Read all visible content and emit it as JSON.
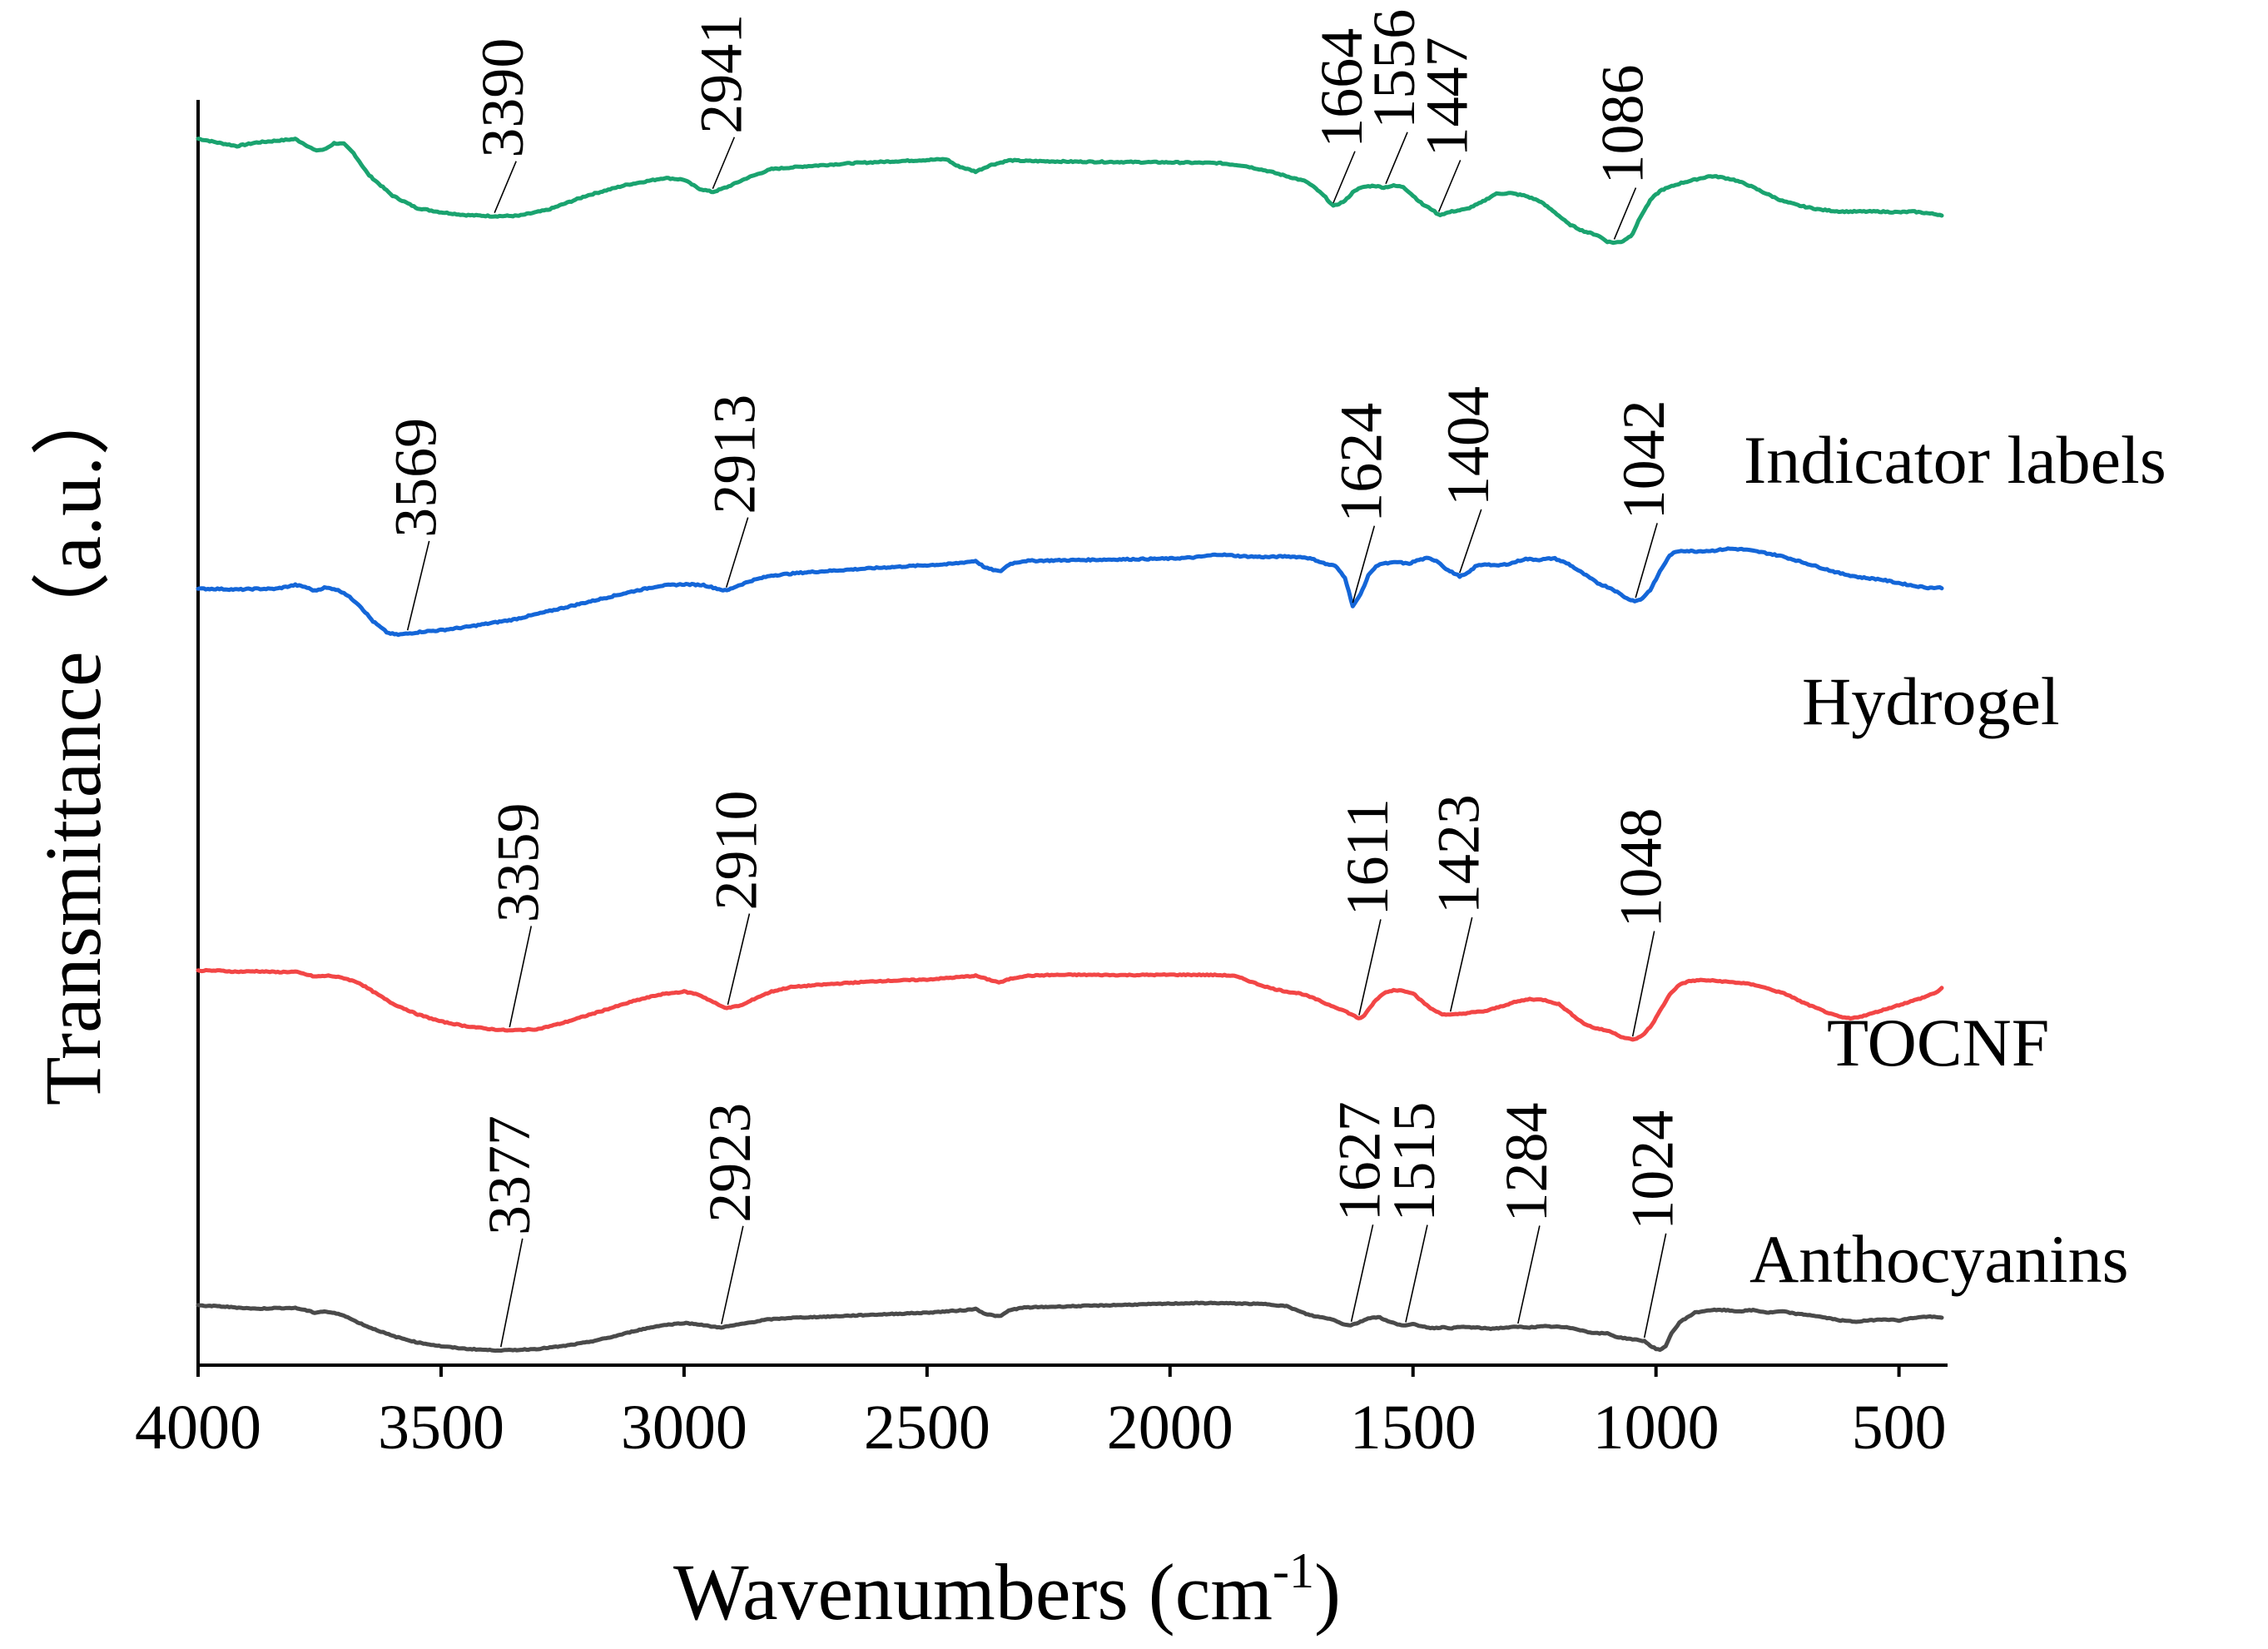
{
  "chart_data": {
    "type": "line",
    "title": "",
    "xlabel": "Wavenumbers (cm",
    "xlabel_sup": "-1",
    "xlabel_end": ")",
    "ylabel": "Transmittance（a.u.）",
    "xlim": [
      4000,
      400
    ],
    "x_reversed": true,
    "xticks": [
      4000,
      3500,
      3000,
      2500,
      2000,
      1500,
      1000,
      500
    ],
    "xtick_labels": [
      "4000",
      "3500",
      "3000",
      "2500",
      "2000",
      "1500",
      "1000",
      "500"
    ],
    "ylim": [
      0,
      100
    ],
    "yticks_shown": false,
    "grid": false,
    "legend": "inline labels at right of each curve",
    "series": [
      {
        "name": "Indicator labels",
        "color": "#1aa36f",
        "x": [
          4000,
          3960,
          3920,
          3880,
          3840,
          3800,
          3780,
          3760,
          3740,
          3720,
          3700,
          3680,
          3650,
          3600,
          3550,
          3500,
          3450,
          3390,
          3340,
          3280,
          3200,
          3120,
          3040,
          3000,
          2970,
          2941,
          2910,
          2870,
          2820,
          2750,
          2650,
          2550,
          2460,
          2440,
          2400,
          2370,
          2330,
          2300,
          2200,
          2100,
          2000,
          1900,
          1850,
          1800,
          1760,
          1720,
          1700,
          1680,
          1664,
          1640,
          1620,
          1600,
          1580,
          1560,
          1540,
          1520,
          1500,
          1480,
          1460,
          1447,
          1420,
          1390,
          1360,
          1330,
          1300,
          1270,
          1240,
          1210,
          1180,
          1150,
          1120,
          1100,
          1086,
          1070,
          1050,
          1030,
          1010,
          990,
          970,
          950,
          920,
          890,
          870,
          840,
          810,
          780,
          740,
          700,
          660,
          620,
          580,
          540,
          500,
          470,
          440,
          410
        ],
        "values": [
          96.1,
          95,
          94,
          95,
          95.5,
          96,
          94.5,
          92.8,
          93,
          94.8,
          94.6,
          92,
          86,
          80,
          76.5,
          75.3,
          74.5,
          74.2,
          74.3,
          76,
          80,
          83,
          85,
          84.5,
          82,
          81,
          82.5,
          85,
          87.5,
          88.3,
          89.2,
          89.8,
          90.3,
          88.5,
          86.8,
          88.6,
          90,
          89.8,
          89.6,
          89.5,
          89.4,
          89.2,
          88.5,
          87,
          85.5,
          84,
          82,
          79.5,
          77,
          78.5,
          81.5,
          82.5,
          82.8,
          82.3,
          82.8,
          82.5,
          80,
          77.5,
          76,
          74.5,
          75.5,
          76.2,
          78,
          80.5,
          80.7,
          80,
          78.5,
          75.5,
          72,
          70,
          68.8,
          67,
          66.7,
          67,
          68.8,
          74.5,
          79,
          81.5,
          82.5,
          83.5,
          84.5,
          85.5,
          85.3,
          84.5,
          83,
          81,
          78.5,
          77,
          76,
          75.5,
          75.5,
          75.5,
          75.3,
          75.5,
          75,
          74.5
        ]
      },
      {
        "name": "Hydrogel",
        "color": "#1466d8",
        "x": [
          4000,
          3960,
          3920,
          3880,
          3840,
          3800,
          3780,
          3760,
          3740,
          3720,
          3700,
          3670,
          3640,
          3610,
          3590,
          3569,
          3540,
          3500,
          3450,
          3400,
          3350,
          3300,
          3250,
          3200,
          3150,
          3100,
          3050,
          3000,
          2960,
          2930,
          2913,
          2890,
          2860,
          2820,
          2750,
          2600,
          2450,
          2400,
          2380,
          2350,
          2330,
          2300,
          2200,
          2100,
          2000,
          1950,
          1900,
          1850,
          1800,
          1760,
          1720,
          1700,
          1680,
          1660,
          1640,
          1624,
          1610,
          1590,
          1570,
          1550,
          1530,
          1510,
          1490,
          1470,
          1450,
          1430,
          1404,
          1390,
          1370,
          1350,
          1330,
          1300,
          1270,
          1240,
          1210,
          1180,
          1150,
          1120,
          1090,
          1060,
          1042,
          1030,
          1010,
          990,
          970,
          950,
          920,
          880,
          850,
          820,
          780,
          740,
          700,
          660,
          620,
          580,
          540,
          500,
          470,
          440,
          410
        ],
        "values": [
          56,
          56,
          55.8,
          56,
          56,
          57,
          56.5,
          55.5,
          56.3,
          56,
          55,
          52,
          47.5,
          44.5,
          44,
          44.3,
          44.8,
          45.2,
          46,
          47,
          48,
          49.5,
          51,
          52.5,
          54,
          55.5,
          56.8,
          57.2,
          57,
          56,
          55.5,
          56.8,
          58.2,
          59.5,
          60.3,
          61.5,
          62.5,
          63.3,
          61.5,
          60.5,
          62.5,
          63.3,
          63.5,
          63.7,
          63.9,
          64.2,
          65,
          64.5,
          64.3,
          64.5,
          64.2,
          63.5,
          62.5,
          62,
          59,
          51.5,
          54,
          60,
          62.5,
          62.7,
          63,
          62.5,
          63.5,
          64,
          63.3,
          61,
          59.3,
          59.8,
          62,
          62.5,
          62,
          62.6,
          63.8,
          63.6,
          64,
          62.5,
          60,
          57.5,
          56,
          53.5,
          52.8,
          53.3,
          56,
          61,
          65,
          66,
          65.8,
          66,
          66.5,
          66.3,
          65.5,
          64.5,
          63,
          61.5,
          60,
          59,
          58.5,
          57.5,
          56.8,
          56.3,
          56.3
        ]
      },
      {
        "name": "TOCNF",
        "color": "#f24646",
        "x": [
          4000,
          3960,
          3920,
          3880,
          3840,
          3800,
          3780,
          3760,
          3730,
          3700,
          3670,
          3640,
          3600,
          3550,
          3500,
          3450,
          3400,
          3359,
          3300,
          3250,
          3200,
          3150,
          3100,
          3050,
          3000,
          2970,
          2940,
          2925,
          2910,
          2880,
          2850,
          2820,
          2780,
          2700,
          2600,
          2500,
          2420,
          2400,
          2380,
          2350,
          2330,
          2300,
          2250,
          2200,
          2100,
          2000,
          1950,
          1900,
          1870,
          1850,
          1820,
          1790,
          1760,
          1730,
          1700,
          1680,
          1660,
          1640,
          1611,
          1600,
          1580,
          1560,
          1540,
          1520,
          1500,
          1480,
          1460,
          1440,
          1423,
          1400,
          1380,
          1350,
          1320,
          1290,
          1260,
          1230,
          1200,
          1170,
          1150,
          1130,
          1110,
          1090,
          1070,
          1048,
          1030,
          1010,
          990,
          970,
          950,
          930,
          910,
          890,
          870,
          850,
          820,
          790,
          760,
          730,
          700,
          670,
          640,
          620,
          600,
          570,
          540,
          510,
          480,
          450,
          420,
          410
        ],
        "values": [
          40,
          40,
          39.6,
          39.8,
          39.5,
          39.6,
          38.8,
          38,
          38.3,
          37.5,
          36,
          33,
          29,
          25.5,
          23,
          21.5,
          20.5,
          20,
          20.5,
          22.5,
          25,
          27.5,
          30,
          32,
          33,
          32,
          29.5,
          28.2,
          27.5,
          28.5,
          31,
          33,
          34.5,
          35.5,
          36.5,
          37,
          38,
          38.3,
          37.3,
          36,
          37.2,
          38.2,
          38.5,
          38.6,
          38.5,
          38.6,
          38.6,
          38.5,
          38.3,
          37.3,
          35.5,
          34,
          33,
          32.3,
          30.5,
          29,
          27.8,
          26.5,
          24,
          25,
          29.5,
          32.5,
          33.5,
          33.3,
          32.5,
          29.5,
          27,
          25.5,
          25.2,
          25.6,
          26,
          26.5,
          28,
          29.5,
          30.5,
          30.2,
          28.8,
          25,
          22.5,
          21,
          20.3,
          19.5,
          17.8,
          16.9,
          18,
          21.5,
          27,
          32.5,
          35.5,
          36.5,
          36.8,
          36.7,
          36.5,
          36.2,
          35.8,
          35,
          33.5,
          32,
          29.5,
          27.5,
          25.5,
          24.5,
          24,
          25,
          26.5,
          28,
          29.5,
          31,
          33,
          34.5
        ]
      },
      {
        "name": "Anthocyanins",
        "color": "#4a4a4a",
        "x": [
          4000,
          3960,
          3920,
          3880,
          3840,
          3800,
          3780,
          3760,
          3740,
          3720,
          3700,
          3680,
          3650,
          3600,
          3550,
          3500,
          3450,
          3400,
          3377,
          3350,
          3300,
          3250,
          3200,
          3150,
          3100,
          3050,
          3000,
          2970,
          2940,
          2923,
          2900,
          2870,
          2830,
          2780,
          2700,
          2600,
          2500,
          2420,
          2400,
          2380,
          2350,
          2330,
          2300,
          2200,
          2100,
          2000,
          1950,
          1900,
          1850,
          1800,
          1760,
          1720,
          1700,
          1680,
          1660,
          1640,
          1627,
          1610,
          1590,
          1570,
          1550,
          1530,
          1515,
          1500,
          1480,
          1460,
          1440,
          1420,
          1400,
          1370,
          1340,
          1310,
          1284,
          1260,
          1230,
          1200,
          1170,
          1140,
          1120,
          1100,
          1080,
          1060,
          1040,
          1024,
          1010,
          1000,
          990,
          980,
          970,
          950,
          920,
          890,
          860,
          830,
          800,
          770,
          740,
          710,
          680,
          650,
          620,
          590,
          560,
          530,
          500,
          470,
          440,
          410
        ],
        "values": [
          18.3,
          18,
          17.5,
          17,
          17.3,
          17.3,
          16.5,
          15.5,
          16,
          15.3,
          14.5,
          12.5,
          10,
          6.5,
          4,
          2.5,
          1.5,
          1,
          0.9,
          1,
          1.5,
          2.5,
          4,
          6,
          8.5,
          10.5,
          11.5,
          11,
          10,
          9.8,
          10.5,
          11.5,
          12.8,
          13.5,
          14,
          14.8,
          15.5,
          16.5,
          17,
          15,
          14,
          16.5,
          17.5,
          18,
          18.5,
          19,
          19.2,
          19.2,
          19,
          18.8,
          18,
          15,
          14,
          13.5,
          12.5,
          10.8,
          10.7,
          11.8,
          13.5,
          13.8,
          12,
          11,
          10.5,
          11,
          10.2,
          9.5,
          9.8,
          9.5,
          10,
          9.7,
          9.3,
          9.7,
          10,
          9.8,
          10.2,
          10,
          9.5,
          8,
          7.5,
          7.5,
          6,
          5.5,
          5,
          4.5,
          2.5,
          1.5,
          1,
          2.5,
          7,
          12,
          15.5,
          16.5,
          16.5,
          16,
          16.5,
          15.5,
          16,
          15,
          14.5,
          13.5,
          12.5,
          12,
          12.5,
          13,
          12.5,
          13.5,
          14,
          13.5
        ]
      }
    ],
    "peak_annotations": [
      {
        "series": "Indicator labels",
        "label": "3390",
        "x": 3390
      },
      {
        "series": "Indicator labels",
        "label": "2941",
        "x": 2941
      },
      {
        "series": "Indicator labels",
        "label": "1664",
        "x": 1664
      },
      {
        "series": "Indicator labels",
        "label": "1556",
        "x": 1556
      },
      {
        "series": "Indicator labels",
        "label": "1447",
        "x": 1447
      },
      {
        "series": "Indicator labels",
        "label": "1086",
        "x": 1086
      },
      {
        "series": "Hydrogel",
        "label": "3569",
        "x": 3569
      },
      {
        "series": "Hydrogel",
        "label": "2913",
        "x": 2913
      },
      {
        "series": "Hydrogel",
        "label": "1624",
        "x": 1624
      },
      {
        "series": "Hydrogel",
        "label": "1404",
        "x": 1404
      },
      {
        "series": "Hydrogel",
        "label": "1042",
        "x": 1042
      },
      {
        "series": "TOCNF",
        "label": "3359",
        "x": 3359
      },
      {
        "series": "TOCNF",
        "label": "2910",
        "x": 2910
      },
      {
        "series": "TOCNF",
        "label": "1611",
        "x": 1611
      },
      {
        "series": "TOCNF",
        "label": "1423",
        "x": 1423
      },
      {
        "series": "TOCNF",
        "label": "1048",
        "x": 1048
      },
      {
        "series": "Anthocyanins",
        "label": "3377",
        "x": 3377
      },
      {
        "series": "Anthocyanins",
        "label": "2923",
        "x": 2923
      },
      {
        "series": "Anthocyanins",
        "label": "1627",
        "x": 1627
      },
      {
        "series": "Anthocyanins",
        "label": "1515",
        "x": 1515
      },
      {
        "series": "Anthocyanins",
        "label": "1284",
        "x": 1284
      },
      {
        "series": "Anthocyanins",
        "label": "1024",
        "x": 1024
      }
    ]
  }
}
